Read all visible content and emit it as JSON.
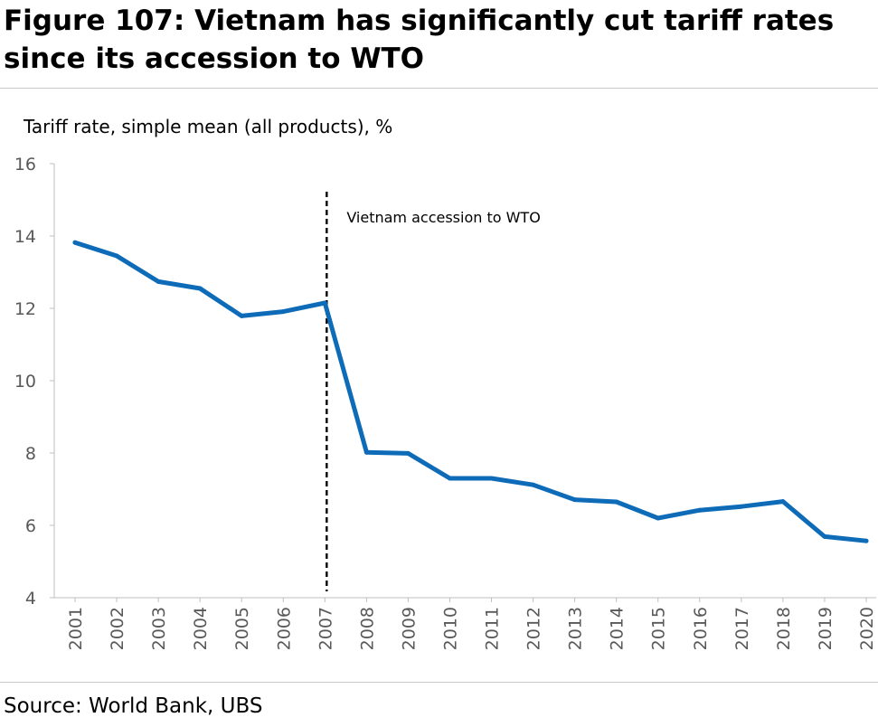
{
  "figure": {
    "title": "Figure 107: Vietnam has significantly cut tariff rates since its accession to WTO",
    "source": "Source: World Bank, UBS"
  },
  "chart_data": {
    "type": "line",
    "ylabel": "Tariff rate, simple mean (all products), %",
    "xlabel": "",
    "ylim": [
      4,
      16
    ],
    "yticks": [
      4,
      6,
      8,
      10,
      12,
      14,
      16
    ],
    "grid": false,
    "x": [
      "2001",
      "2002",
      "2003",
      "2004",
      "2005",
      "2006",
      "2007",
      "2008",
      "2009",
      "2010",
      "2011",
      "2012",
      "2013",
      "2014",
      "2015",
      "2016",
      "2017",
      "2018",
      "2019",
      "2020"
    ],
    "series": [
      {
        "values": [
          13.82,
          13.45,
          12.74,
          12.55,
          11.79,
          11.91,
          12.15,
          8.02,
          7.99,
          7.3,
          7.3,
          7.12,
          6.71,
          6.65,
          6.2,
          6.42,
          6.52,
          6.66,
          5.69,
          5.57
        ],
        "color": "#0e6bb8"
      }
    ],
    "annotations": [
      {
        "x": "2007",
        "label": "Vietnam accession to WTO",
        "style": "dashed-vertical-line"
      }
    ],
    "colors": {
      "axis": "#bfbfbf",
      "tick_label": "#595959",
      "line": "#0e6bb8",
      "marker_line": "#000000"
    }
  }
}
